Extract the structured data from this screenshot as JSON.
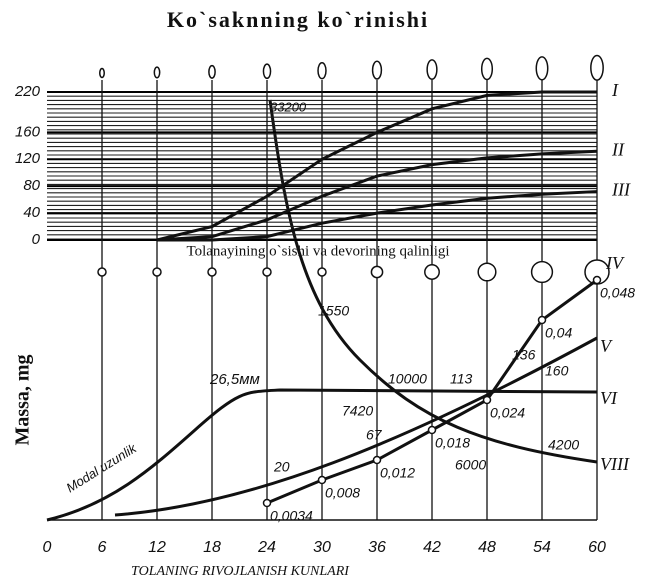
{
  "chart_data": [
    {
      "type": "line",
      "title": "Ko`saknning ko`rinishi",
      "x": [
        12,
        18,
        24,
        30,
        36,
        42,
        48,
        54,
        60
      ],
      "xlim": [
        0,
        60
      ],
      "ylim": [
        0,
        220
      ],
      "yticks": [
        0,
        40,
        80,
        120,
        160,
        220
      ],
      "grid": true,
      "series": [
        {
          "name": "I",
          "color": "#111111",
          "values": [
            0,
            20,
            65,
            120,
            160,
            195,
            215,
            220,
            220
          ]
        },
        {
          "name": "II",
          "color": "#111111",
          "values": [
            0,
            5,
            30,
            65,
            95,
            112,
            122,
            128,
            132
          ]
        },
        {
          "name": "III",
          "color": "#111111",
          "values": [
            0,
            0,
            5,
            25,
            40,
            52,
            62,
            68,
            72
          ]
        }
      ]
    },
    {
      "type": "line",
      "title": "Tolanayining o`sishi va devorining qalinligi",
      "x_label": "TOLANING RIVOJLANISH KUNLARI",
      "y_label": "Massa, mg",
      "xlim": [
        0,
        60
      ],
      "ylim": [
        0,
        0.05
      ],
      "xticks": [
        0,
        6,
        12,
        18,
        24,
        30,
        36,
        42,
        48,
        54,
        60
      ],
      "series": [
        {
          "name": "IV",
          "color": "#111111",
          "x": [
            24,
            30,
            36,
            42,
            48,
            54,
            60
          ],
          "values": [
            0.0034,
            0.008,
            0.012,
            0.018,
            0.024,
            0.04,
            0.048
          ],
          "value_labels": [
            "0,0034",
            "0,008",
            "0,012",
            "0,018",
            "0,024",
            "0,04",
            "0,048"
          ]
        }
      ],
      "annotations": [
        "33200",
        "1550",
        "10000",
        "7420",
        "67",
        "20",
        "113",
        "136",
        "160",
        "6000",
        "4200",
        "26,5мм",
        "Modal uzunlik",
        "V",
        "VI",
        "VIII"
      ]
    }
  ]
}
